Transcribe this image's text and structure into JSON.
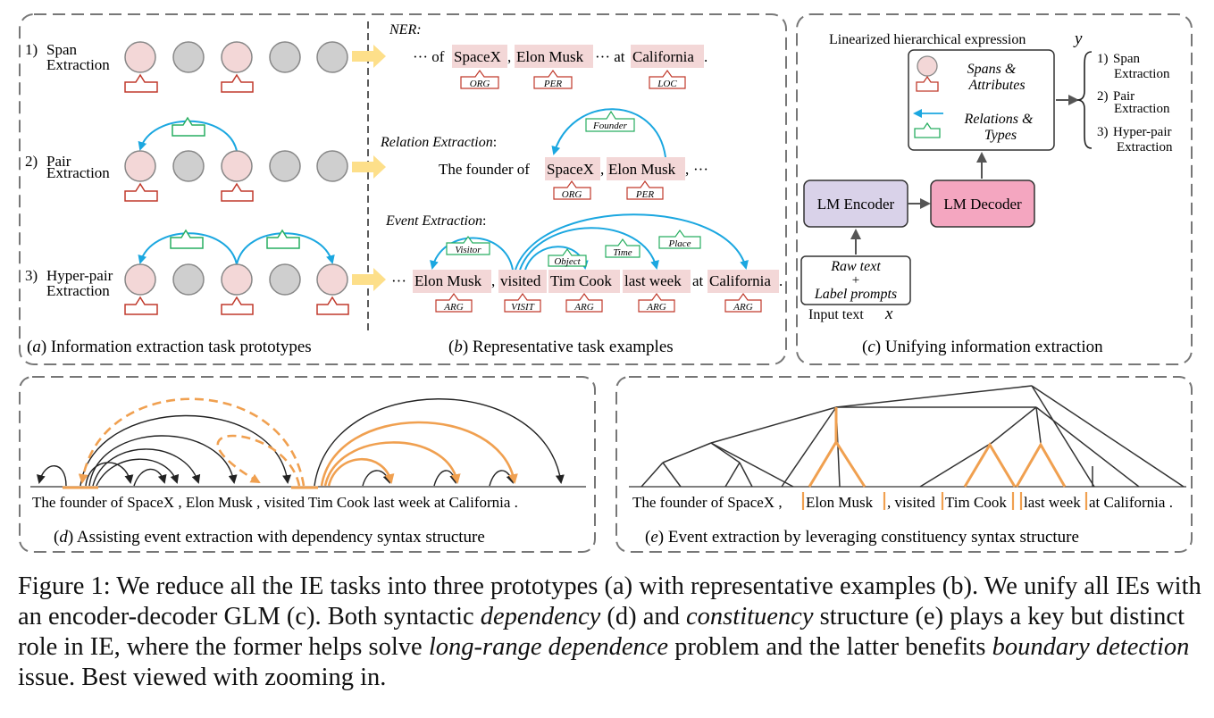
{
  "panel_a": {
    "row1_num": "1)",
    "row1_line1": "Span",
    "row1_line2": "Extraction",
    "row2_num": "2)",
    "row2_line1": "Pair",
    "row2_line2": "Extraction",
    "row3_num": "3)",
    "row3_line1": "Hyper-pair",
    "row3_line2": "Extraction",
    "caption_letter": "a",
    "caption": "Information extraction task prototypes"
  },
  "panel_b": {
    "ner_title": "NER",
    "ner_lead": "··· of",
    "ner_spacex": "SpaceX",
    "ner_musk": "Elon Musk",
    "ner_mid": "··· at",
    "ner_cal": "California",
    "ner_tags": [
      "ORG",
      "PER",
      "LOC"
    ],
    "re_title": "Relation Extraction",
    "re_lead": "The founder of",
    "re_spacex": "SpaceX",
    "re_musk": "Elon Musk",
    "re_trail": "···",
    "re_rel": "Founder",
    "re_tags": [
      "ORG",
      "PER"
    ],
    "ee_title": "Event Extraction",
    "ee_lead": "···",
    "ee_musk": "Elon Musk",
    "ee_visited": "visited",
    "ee_cook": "Tim Cook",
    "ee_week": "last week",
    "ee_at": "at",
    "ee_cal": "California",
    "ee_roles": [
      "Visitor",
      "Object",
      "Time",
      "Place"
    ],
    "ee_tags": [
      "ARG",
      "VISIT",
      "ARG",
      "ARG",
      "ARG"
    ],
    "caption_letter": "b",
    "caption": "Representative task examples"
  },
  "panel_c": {
    "linearized_label": "Linearized hierarchical expression",
    "y_symbol": "y",
    "legend_spans_line1": "Spans &",
    "legend_spans_line2": "Attributes",
    "legend_rel_line1": "Relations &",
    "legend_rel_line2": "Types",
    "out1_num": "1)",
    "out1_a": "Span",
    "out1_b": "Extraction",
    "out2_num": "2)",
    "out2_a": "Pair",
    "out2_b": "Extraction",
    "out3_num": "3)",
    "out3_a": "Hyper-pair",
    "out3_b": "Extraction",
    "encoder": "LM Encoder",
    "decoder": "LM Decoder",
    "input_line1": "Raw text",
    "input_plus": "+",
    "input_line2": "Label prompts",
    "input_label": "Input text",
    "x_symbol": "x",
    "caption_letter": "c",
    "caption": "Unifying information extraction"
  },
  "panel_d": {
    "sentence": "The founder of SpaceX , Elon Musk , visited Tim Cook last week at California .",
    "caption_letter": "d",
    "caption": "Assisting event extraction with dependency syntax structure"
  },
  "panel_e": {
    "w1": "The founder of SpaceX ,",
    "w2": "Elon Musk",
    "w3": ", visited",
    "w4": "Tim Cook",
    "w5": "last week",
    "w6": "at California .",
    "caption_letter": "e",
    "caption": "Event extraction by leveraging constituency syntax structure"
  },
  "figure_caption": {
    "p1": "Figure 1: We reduce all the IE tasks into three prototypes (a) with representative examples (b). We unify all IEs with an encoder-decoder GLM (c). Both syntactic ",
    "em1": "dependency",
    "p2": " (d) and ",
    "em2": "constituency",
    "p3": " structure (e) plays a key but distinct role in IE, where the former helps solve ",
    "em3": "long-range dependence",
    "p4": " problem and the latter benefits ",
    "em4": "boundary detection",
    "p5": " issue. Best viewed with zooming in."
  },
  "colors": {
    "pink_fill": "#f3d7d7",
    "pink_stroke": "#888888",
    "grey_fill": "#cfcfcf",
    "red_tag": "#c0392b",
    "green_tag": "#27ae60",
    "blue_arc": "#1ba7e0",
    "orange": "#f0a050",
    "yellow_arrow": "#fddf8a",
    "encoder_fill": "#d9d2e9",
    "decoder_fill": "#f4a6c0",
    "dash": "#777777"
  }
}
